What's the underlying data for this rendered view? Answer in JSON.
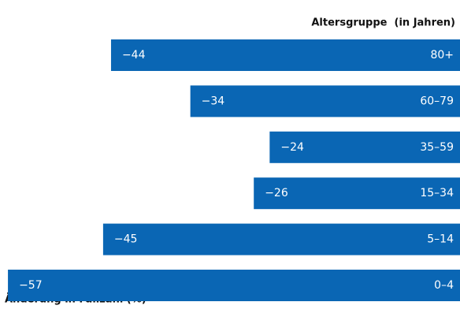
{
  "chart_data": {
    "type": "bar",
    "orientation": "horizontal",
    "title": "Altersgruppe  (in Jahren)",
    "x_label": "Änderung in Fallzahl (%)",
    "categories": [
      "80+",
      "60–79",
      "35–59",
      "15–34",
      "5–14",
      "0–4"
    ],
    "values": [
      -44,
      -34,
      -24,
      -26,
      -45,
      -57
    ],
    "value_labels": [
      "−44",
      "−34",
      "−24",
      "−26",
      "−45",
      "−57"
    ],
    "color": "#0a66b4",
    "xlim": [
      -58,
      0
    ]
  }
}
